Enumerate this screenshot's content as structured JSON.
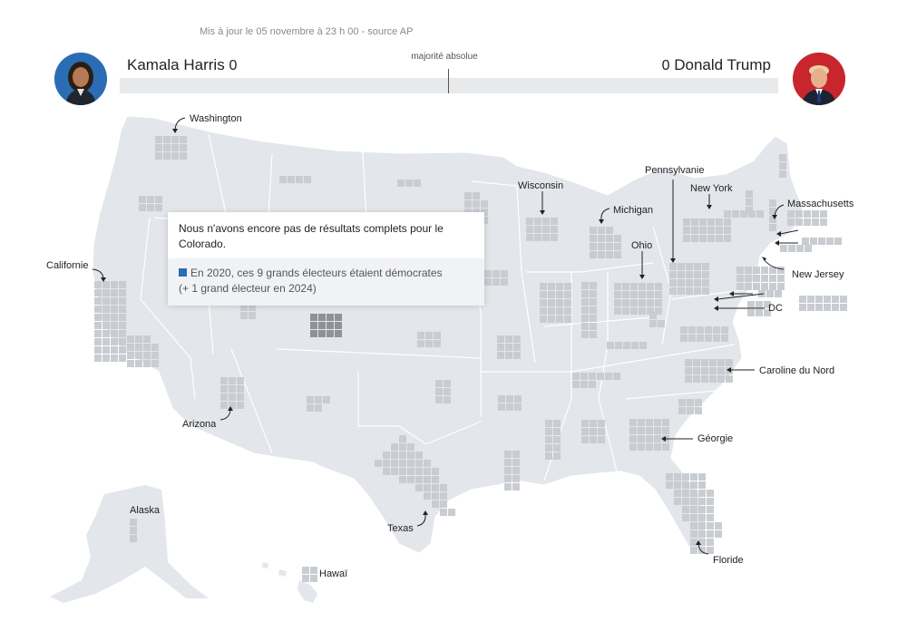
{
  "header": {
    "updated": "Mis à jour le 05 novembre à 23 h 00 - source AP",
    "majority_label": "majorité absolue"
  },
  "candidates": {
    "left": {
      "name": "Kamala Harris",
      "votes": "0",
      "color": "#2a6db4"
    },
    "right": {
      "name": "Donald Trump",
      "votes": "0",
      "color": "#c9252c"
    }
  },
  "tooltip": {
    "title": "Nous n'avons encore pas de résultats complets pour le Colorado.",
    "detail_line1": "En 2020, ces 9 grands électeurs étaient démocrates",
    "detail_line2": "(+ 1 grand électeur en 2024)",
    "swatch_color": "#2a6db4"
  },
  "map": {
    "land_color": "#e3e6ea",
    "tile_color": "#c9cdd2",
    "selected_color": "#8e9297",
    "labels": {
      "washington": "Washington",
      "california": "Californie",
      "arizona": "Arizona",
      "texas": "Texas",
      "alaska": "Alaska",
      "hawaii": "Hawaï",
      "wisconsin": "Wisconsin",
      "michigan": "Michigan",
      "ohio": "Ohio",
      "pennsylvania": "Pennsylvanie",
      "newyork": "New York",
      "massachusetts": "Massachusetts",
      "newjersey": "New Jersey",
      "dc": "DC",
      "northcarolina": "Caroline du Nord",
      "georgia": "Géorgie",
      "florida": "Floride"
    }
  }
}
